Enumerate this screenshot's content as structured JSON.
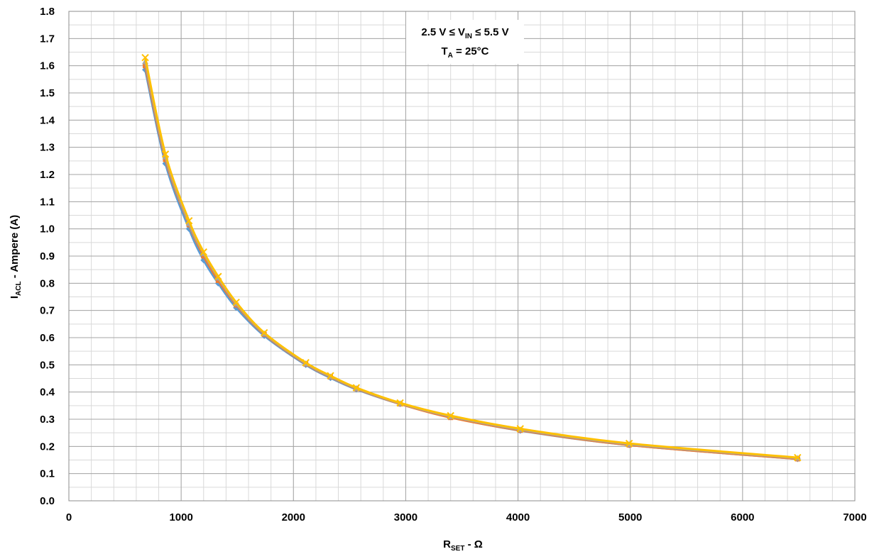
{
  "chart_data": {
    "type": "line",
    "xlim": [
      0,
      7000
    ],
    "ylim": [
      0,
      1.8
    ],
    "x_ticks": [
      "0",
      "1000",
      "2000",
      "3000",
      "4000",
      "5000",
      "6000",
      "7000"
    ],
    "y_ticks": [
      "0.0",
      "0.1",
      "0.2",
      "0.3",
      "0.4",
      "0.5",
      "0.6",
      "0.7",
      "0.8",
      "0.9",
      "1.0",
      "1.1",
      "1.2",
      "1.3",
      "1.4",
      "1.5",
      "1.6",
      "1.7",
      "1.8"
    ],
    "x_minor_step": 200,
    "y_minor_step": 0.05,
    "grid": true,
    "xlabel": {
      "main": "R",
      "sub": "SET",
      "rest": " - Ω"
    },
    "ylabel": {
      "main": "I",
      "sub": "ACL",
      "rest": " - Ampere (A)"
    },
    "annotation": {
      "line1": {
        "pre": "2.5 V ≤ V",
        "sub": "IN",
        "post": " ≤ 5.5 V"
      },
      "line2": {
        "pre": "T",
        "sub": "A",
        "post": " = 25°C"
      }
    },
    "x": [
      680,
      860,
      1070,
      1200,
      1330,
      1490,
      1740,
      2110,
      2330,
      2560,
      2950,
      3400,
      4020,
      4990,
      6490
    ],
    "series": [
      {
        "color": "#5B9BD5",
        "marker": "diamond",
        "values": [
          1.585,
          1.24,
          1.0,
          0.885,
          0.8,
          0.71,
          0.607,
          0.5,
          0.452,
          0.41,
          0.356,
          0.308,
          0.258,
          0.205,
          0.154
        ]
      },
      {
        "color": "#ED7D31",
        "marker": "square",
        "values": [
          1.6,
          1.255,
          1.015,
          0.9,
          0.81,
          0.72,
          0.612,
          0.503,
          0.455,
          0.412,
          0.356,
          0.306,
          0.259,
          0.205,
          0.154
        ]
      },
      {
        "color": "#A5A5A5",
        "marker": "triangle",
        "values": [
          1.615,
          1.265,
          1.02,
          0.91,
          0.82,
          0.725,
          0.615,
          0.505,
          0.457,
          0.414,
          0.358,
          0.31,
          0.262,
          0.208,
          0.157
        ]
      },
      {
        "color": "#FFC000",
        "marker": "x",
        "values": [
          1.63,
          1.275,
          1.03,
          0.915,
          0.825,
          0.73,
          0.618,
          0.508,
          0.46,
          0.416,
          0.36,
          0.313,
          0.265,
          0.211,
          0.159
        ]
      }
    ]
  }
}
